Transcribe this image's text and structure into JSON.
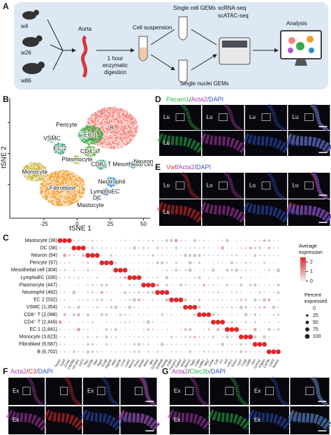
{
  "panel_a": {
    "letter": "A",
    "timepoints": [
      "w4",
      "w26",
      "w86"
    ],
    "aorta": "Aorta",
    "digestion": [
      "1 hour",
      "enzymatic",
      "digestion"
    ],
    "cell_suspension": "Cell suspension",
    "single_cell": "Single cell GEMs",
    "single_nuclei": "Single nuclei GEMs",
    "sequencing": [
      "scRNA-seq",
      "scATAC-seq"
    ],
    "analysis": "Analysis"
  },
  "chart_data": [
    {
      "type": "scatter",
      "panel": "B",
      "xlabel": "tSNE 1",
      "ylabel": "tSNE 2",
      "xlim": [
        -45,
        55
      ],
      "ylim": [
        -50,
        45
      ],
      "xticks": [
        -25,
        0,
        25,
        50
      ],
      "yticks": [
        -25,
        0,
        25
      ],
      "series": [
        {
          "name": "B",
          "color": "#f2877d",
          "x": [
            26
          ],
          "y": [
            20.6
          ]
        },
        {
          "name": "EC 1",
          "color": "#3aa84a",
          "x": [
            10
          ],
          "y": [
            15
          ]
        },
        {
          "name": "Pericyte",
          "color": "#b05cc8",
          "x": [
            -8
          ],
          "y": [
            23
          ]
        },
        {
          "name": "VSMC",
          "color": "#7cc4c0",
          "x": [
            -19
          ],
          "y": [
            12
          ]
        },
        {
          "name": "EC 2",
          "color": "#2f9c6a",
          "x": [
            -13
          ],
          "y": [
            4
          ]
        },
        {
          "name": "CD4⁺ T",
          "color": "#6cb04a",
          "x": [
            10
          ],
          "y": [
            1.5
          ]
        },
        {
          "name": "CD8⁺ T",
          "color": "#44a88c",
          "x": [
            18
          ],
          "y": [
            -9
          ]
        },
        {
          "name": "Plasmocyte",
          "color": "#b6c24a",
          "x": [
            0
          ],
          "y": [
            -5
          ]
        },
        {
          "name": "Monocyte",
          "color": "#c7b23a",
          "x": [
            -32
          ],
          "y": [
            -15
          ]
        },
        {
          "name": "Fibroblast",
          "color": "#f0a030",
          "x": [
            -11
          ],
          "y": [
            -28
          ]
        },
        {
          "name": "Neutrophil",
          "color": "#2a8fd0",
          "x": [
            26
          ],
          "y": [
            -23
          ]
        },
        {
          "name": "Mesothelial cell",
          "color": "#4ab8d8",
          "x": [
            42
          ],
          "y": [
            -9
          ]
        },
        {
          "name": "Neuron",
          "color": "#e055c0",
          "x": [
            50
          ],
          "y": [
            -6.5
          ]
        },
        {
          "name": "LymphoEC",
          "color": "#3c6fd0",
          "x": [
            21
          ],
          "y": [
            -31
          ]
        },
        {
          "name": "DC",
          "color": "#5aa0e0",
          "x": [
            15
          ],
          "y": [
            -36
          ]
        },
        {
          "name": "Mastocyte",
          "color": "#7a7acb",
          "x": [
            10
          ],
          "y": [
            -42
          ]
        }
      ]
    },
    {
      "type": "dotplot",
      "panel": "C",
      "color": "#e0262a",
      "rows": [
        "Mastocyte (36)",
        "DC (38)",
        "Neuron (94)",
        "Pericyte (97)",
        "Mesothelial cell (304)",
        "LymphoEC (330)",
        "Plasmocyte (447)",
        "Neutrophil (482)",
        "EC 2 (532)",
        "VSMC (1,354)",
        "CD8⁺ T (2,098)",
        "CD4⁺ T (2,449)",
        "EC 1 (2,841)",
        "Monocyte (3,623)",
        "Fibroblast (6,587)",
        "B (6,702)"
      ],
      "genes": [
        "Tpsb2",
        "Cpa3",
        "Cma1",
        "Cd209a",
        "H2-Ab1",
        "Cd74",
        "Plp1",
        "S100b",
        "Mpz",
        "Rgs5",
        "Kcnj8",
        "Higd1b",
        "Msln",
        "Upk3b",
        "Lrrn4",
        "Lyve1",
        "Mmrn1",
        "Prox1",
        "Jchain",
        "Mzb1",
        "Igkc",
        "S100a8",
        "S100a9",
        "Retnlg",
        "Cdh5",
        "Pecam1",
        "Fabp4",
        "Acta2",
        "Myh11",
        "Tagln",
        "Cd8a",
        "Cd8b1",
        "Nkg7",
        "Cd3e",
        "Cd4",
        "Il7r",
        "Vwf",
        "Ly6c1",
        "Emcn",
        "Lyz2",
        "C1qa",
        "Cd68",
        "Dcn",
        "Col1a1",
        "Pdgfra",
        "Cd79a",
        "Cd19",
        "Ms4a1"
      ],
      "markers": [
        [
          0,
          1,
          2
        ],
        [
          3,
          4,
          5
        ],
        [
          6,
          7,
          8
        ],
        [
          9,
          10,
          11
        ],
        [
          12,
          13,
          14
        ],
        [
          15,
          16,
          17
        ],
        [
          18,
          19,
          20
        ],
        [
          21,
          22,
          23
        ],
        [
          24,
          25,
          26
        ],
        [
          27,
          28,
          29
        ],
        [
          30,
          31,
          32
        ],
        [
          33,
          34,
          35
        ],
        [
          36,
          37,
          38
        ],
        [
          39,
          40,
          41
        ],
        [
          42,
          43,
          44
        ],
        [
          45,
          46,
          47
        ]
      ],
      "color_title": [
        "Average",
        "expression"
      ],
      "color_lim": [
        0,
        2.5
      ],
      "color_ticks": [
        2,
        1,
        0
      ],
      "size_title": [
        "Percent",
        "expressed"
      ],
      "size_lim": [
        0,
        100
      ],
      "size_ticks": [
        0,
        25,
        50,
        75,
        100
      ]
    }
  ],
  "images": [
    {
      "panel": "D",
      "stain": [
        {
          "text": "Pecam1",
          "color": "#2db34a"
        },
        {
          "text": "/",
          "color": "#222222"
        },
        {
          "text": "Acta2",
          "color": "#b03cb0"
        },
        {
          "text": "/DAPI",
          "color": "#3050c0"
        }
      ],
      "top_labels": [
        "Lu",
        "Lu",
        "Lu",
        "Lu"
      ],
      "bottom_labels": [
        "Lu",
        null,
        null,
        null
      ]
    },
    {
      "panel": "E",
      "stain": [
        {
          "text": "Vwf",
          "color": "#e03030"
        },
        {
          "text": "/",
          "color": "#222222"
        },
        {
          "text": "Acta2",
          "color": "#b03cb0"
        },
        {
          "text": "/DAPI",
          "color": "#3050c0"
        }
      ],
      "top_labels": [
        "Lu",
        "Lu",
        "Lu",
        "Lu"
      ],
      "bottom_labels": [
        "Lu",
        null,
        null,
        null
      ]
    },
    {
      "panel": "F",
      "stain": [
        {
          "text": "Acta2",
          "color": "#b03cb0"
        },
        {
          "text": "/",
          "color": "#222222"
        },
        {
          "text": "C3",
          "color": "#e03030"
        },
        {
          "text": "/DAPI",
          "color": "#3050c0"
        }
      ],
      "top_labels": [
        "Ex",
        null,
        "Ex",
        null
      ],
      "bottom_labels": [
        "Ex",
        null,
        null,
        null
      ]
    },
    {
      "panel": "G",
      "stain": [
        {
          "text": "Acta2",
          "color": "#b03cb0"
        },
        {
          "text": "/",
          "color": "#222222"
        },
        {
          "text": "Clec3b",
          "color": "#2db34a"
        },
        {
          "text": "/DAPI",
          "color": "#3050c0"
        }
      ],
      "top_labels": [
        "Ex",
        null,
        "Ex",
        null
      ],
      "bottom_labels": [
        "Ex",
        null,
        "Ex",
        null
      ]
    }
  ]
}
